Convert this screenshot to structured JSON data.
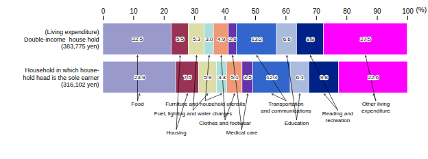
{
  "chart_data": {
    "type": "bar",
    "orientation": "horizontal",
    "stacked": true,
    "data_labels": true,
    "xlabel": "(%)",
    "categories": [
      "(Living expenditure)\nDouble-income  house hold\n(383,775 yen)",
      "Household in which house-\nhold head is the sole earner\n(316,102 yen)"
    ],
    "series": [
      {
        "name": "Food",
        "color": "#9999cc",
        "values": [
          22.5,
          23.9
        ],
        "value_labels": [
          "22.5",
          "23.9"
        ]
      },
      {
        "name": "Housing",
        "color": "#993355",
        "values": [
          5.5,
          7.5
        ],
        "value_labels": [
          "5.5",
          "7.5"
        ]
      },
      {
        "name": "Fuel, lighting and water charges",
        "color": "#ddddaa",
        "values": [
          5.3,
          5.9
        ],
        "value_labels": [
          "5.3",
          "5.9"
        ]
      },
      {
        "name": "Furniture and household utensils",
        "color": "#aadddd",
        "values": [
          3.0,
          3.3
        ],
        "value_labels": [
          "3.0",
          "3.3"
        ]
      },
      {
        "name": "Clothes and footwear",
        "color": "#ee9977",
        "values": [
          4.9,
          5.1
        ],
        "value_labels": [
          "4.9",
          "5.1"
        ]
      },
      {
        "name": "Medical care",
        "color": "#6633aa",
        "values": [
          2.6,
          3.5
        ],
        "value_labels": [
          "2.6",
          "3.5"
        ]
      },
      {
        "name": "Transportation\nand communications",
        "color": "#3366cc",
        "values": [
          13.2,
          12.3
        ],
        "value_labels": [
          "13.2",
          "12.3"
        ]
      },
      {
        "name": "Education",
        "color": "#aabbdd",
        "values": [
          6.6,
          6.1
        ],
        "value_labels": [
          "6.6",
          "6.1"
        ]
      },
      {
        "name": "Reading and\nrecreation",
        "color": "#002288",
        "values": [
          8.8,
          9.8
        ],
        "value_labels": [
          "8.8",
          "9.8"
        ]
      },
      {
        "name": "Other living\nexpenditure",
        "color": "#ff00ff",
        "values": [
          27.5,
          22.6
        ],
        "value_labels": [
          "27.5",
          "22.6"
        ]
      }
    ],
    "xlim": [
      0,
      100
    ],
    "xticks": [
      0,
      10,
      20,
      30,
      40,
      50,
      60,
      70,
      80,
      90,
      100
    ]
  }
}
